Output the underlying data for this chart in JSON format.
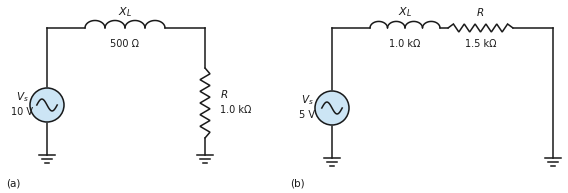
{
  "fig_width": 5.68,
  "fig_height": 1.93,
  "dpi": 100,
  "bg_color": "#ffffff",
  "circuit_a": {
    "label": "(a)",
    "vs_value": "10 V",
    "xl_value": "500 Ω",
    "r_value": "1.0 kΩ"
  },
  "circuit_b": {
    "label": "(b)",
    "vs_value": "5 V",
    "xl_value": "1.0 kΩ",
    "r_value": "1.5 kΩ"
  },
  "lw": 1.1,
  "circle_color": "#cce5f5",
  "line_color": "#1a1a1a",
  "font_size_label": 7.5,
  "font_size_value": 7.0
}
